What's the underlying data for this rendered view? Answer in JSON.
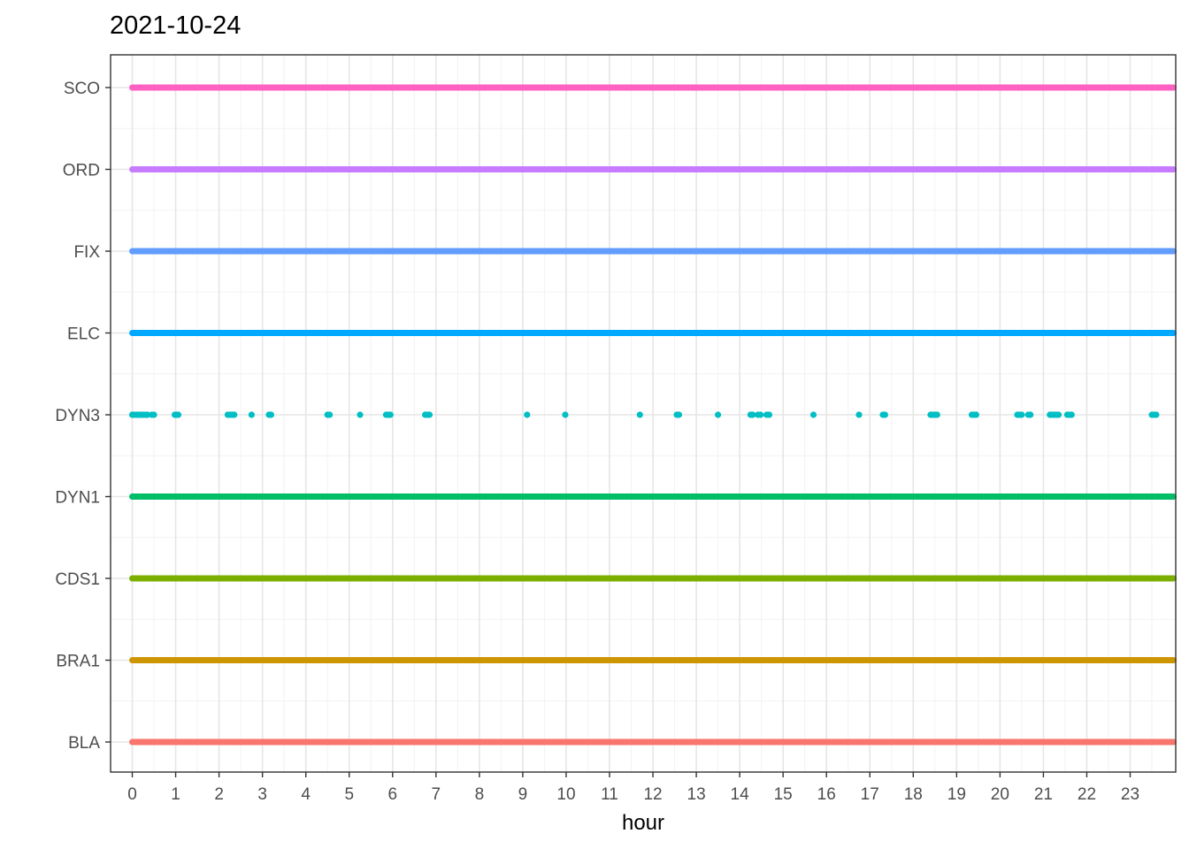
{
  "chart_data": {
    "type": "scatter",
    "title": "2021-10-24",
    "xlabel": "hour",
    "ylabel": "",
    "xlim": [
      -0.5,
      24.05
    ],
    "x_ticks": [
      0,
      1,
      2,
      3,
      4,
      5,
      6,
      7,
      8,
      9,
      10,
      11,
      12,
      13,
      14,
      15,
      16,
      17,
      18,
      19,
      20,
      21,
      22,
      23
    ],
    "x_tick_labels": [
      "0",
      "1",
      "2",
      "3",
      "4",
      "5",
      "6",
      "7",
      "8",
      "9",
      "10",
      "11",
      "12",
      "13",
      "14",
      "15",
      "16",
      "17",
      "18",
      "19",
      "20",
      "21",
      "22",
      "23"
    ],
    "grid": true,
    "legend": "none",
    "categories": [
      "BLA",
      "BRA1",
      "CDS1",
      "DYN1",
      "DYN3",
      "ELC",
      "FIX",
      "ORD",
      "SCO"
    ],
    "series": [
      {
        "name": "BLA",
        "color": "#F8766D",
        "mode": "continuous",
        "x_range": [
          0,
          24
        ]
      },
      {
        "name": "BRA1",
        "color": "#CD9600",
        "mode": "continuous",
        "x_range": [
          0,
          24
        ]
      },
      {
        "name": "CDS1",
        "color": "#7CAE00",
        "mode": "continuous",
        "x_range": [
          0,
          24
        ]
      },
      {
        "name": "DYN1",
        "color": "#00BE67",
        "mode": "continuous",
        "x_range": [
          0,
          24
        ]
      },
      {
        "name": "DYN3",
        "color": "#00BFC4",
        "mode": "points",
        "points": [
          0.0,
          0.05,
          0.1,
          0.15,
          0.2,
          0.25,
          0.3,
          0.35,
          0.45,
          0.5,
          0.98,
          1.02,
          1.06,
          2.2,
          2.25,
          2.3,
          2.35,
          2.75,
          3.15,
          3.2,
          4.5,
          4.55,
          5.25,
          5.85,
          5.9,
          5.95,
          6.75,
          6.8,
          6.85,
          9.1,
          9.98,
          11.7,
          12.55,
          12.6,
          13.5,
          14.25,
          14.3,
          14.42,
          14.48,
          14.62,
          14.68,
          15.7,
          16.75,
          17.3,
          17.35,
          18.4,
          18.45,
          18.5,
          18.55,
          19.35,
          19.4,
          19.45,
          20.4,
          20.45,
          20.5,
          20.65,
          20.7,
          21.15,
          21.2,
          21.25,
          21.3,
          21.35,
          21.55,
          21.6,
          21.65,
          23.5,
          23.55,
          23.6
        ]
      },
      {
        "name": "ELC",
        "color": "#00A9FF",
        "mode": "continuous",
        "x_range": [
          0,
          24
        ]
      },
      {
        "name": "FIX",
        "color": "#619CFF",
        "mode": "continuous",
        "x_range": [
          0,
          24
        ]
      },
      {
        "name": "ORD",
        "color": "#C77CFF",
        "mode": "continuous",
        "x_range": [
          0,
          24
        ]
      },
      {
        "name": "SCO",
        "color": "#FF61C3",
        "mode": "continuous",
        "x_range": [
          0,
          24
        ]
      }
    ]
  }
}
